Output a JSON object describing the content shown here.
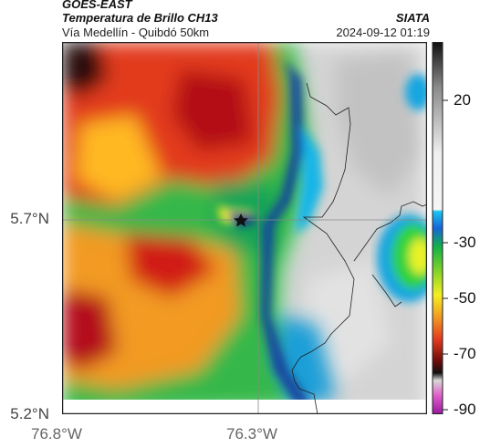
{
  "header": {
    "satellite": "GOES-EAST",
    "product": "Temperatura de Brillo CH13",
    "route": "Vía Medellín - Quibdó 50km",
    "agency": "SIATA",
    "datetime": "2024-09-12 01:19"
  },
  "axes": {
    "lat_ticks": [
      {
        "label": "5.7°N",
        "value": 5.7
      },
      {
        "label": "5.2°N",
        "value": 5.2
      }
    ],
    "lon_ticks": [
      {
        "label": "76.8°W",
        "value": -76.8
      },
      {
        "label": "76.3°W",
        "value": -76.3
      }
    ]
  },
  "colorbar": {
    "ticks": [
      {
        "label": "20",
        "value": 20
      },
      {
        "label": "-30",
        "value": -30
      },
      {
        "label": "-50",
        "value": -50
      },
      {
        "label": "-70",
        "value": -70
      },
      {
        "label": "-90",
        "value": -90
      }
    ],
    "range": [
      -95,
      35
    ]
  },
  "map": {
    "marker": "star-icon",
    "gridlines": "crosshair at 5.7°N, 76.3°W"
  }
}
